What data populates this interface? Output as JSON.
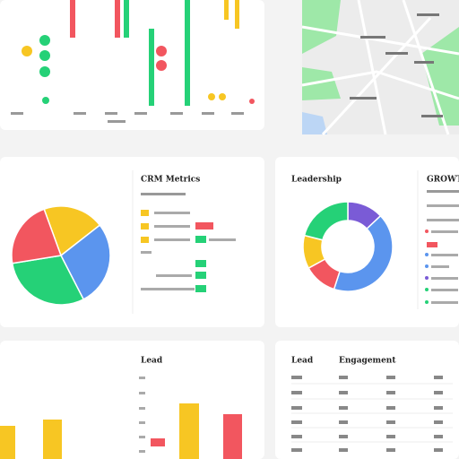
{
  "panels": {
    "crm": {
      "title": "CRM Metrics"
    },
    "leadership": {
      "title": "Leadership",
      "side_title": "GROWTH"
    },
    "lead": {
      "title": "Lead"
    },
    "engagement": {
      "title": "Lead",
      "column_title": "Engagement"
    }
  },
  "pie": {
    "type": "pie",
    "values": [
      20,
      28,
      30,
      22
    ],
    "colors": [
      "#f7c623",
      "#5b95ee",
      "#25d177",
      "#f2565f"
    ],
    "start_angle": -20
  },
  "donut": {
    "type": "donut",
    "values": [
      13,
      42,
      12,
      12,
      21
    ],
    "colors": [
      "#7a5bd6",
      "#5b95ee",
      "#f2565f",
      "#f7c623",
      "#25d177"
    ],
    "start_angle": 0
  },
  "bars": {
    "type": "bar",
    "values": [
      37,
      44,
      62,
      50
    ],
    "colors": [
      "#f7c623",
      "#f7c623",
      "#f7c623",
      "#f2565f"
    ]
  }
}
